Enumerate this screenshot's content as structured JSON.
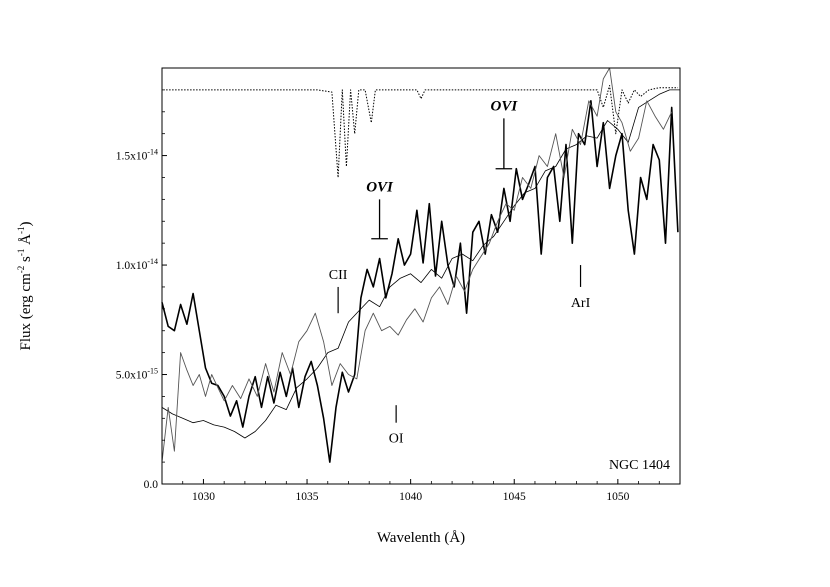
{
  "chart_data": {
    "type": "line",
    "title": "",
    "xlabel": "Wavelenth (Å)",
    "ylabel": "Flux (erg cm-2 s-1 Å-1)",
    "xlim": [
      1028,
      1053
    ],
    "ylim": [
      0,
      1.9e-14
    ],
    "x_ticks": [
      1030,
      1035,
      1040,
      1045,
      1050
    ],
    "x_tick_labels": [
      "1030",
      "1035",
      "1040",
      "1045",
      "1050"
    ],
    "y_ticks": [
      0,
      5e-15,
      1e-14,
      1.5e-14
    ],
    "y_tick_labels": [
      "0.0",
      "5.0x10-15",
      "1.0x10-14",
      "1.5x10-14"
    ],
    "grid": false,
    "legend": "none",
    "annotation": "NGC 1404",
    "series": [
      {
        "style": "thick-black",
        "x": [
          1028.0,
          1028.3,
          1028.6,
          1028.9,
          1029.2,
          1029.5,
          1029.8,
          1030.1,
          1030.4,
          1030.7,
          1031.0,
          1031.3,
          1031.6,
          1031.9,
          1032.2,
          1032.5,
          1032.8,
          1033.1,
          1033.4,
          1033.7,
          1034.0,
          1034.3,
          1034.6,
          1034.9,
          1035.2,
          1035.5,
          1035.8,
          1036.1,
          1036.4,
          1036.7,
          1037.0,
          1037.3,
          1037.6,
          1037.9,
          1038.2,
          1038.5,
          1038.8,
          1039.1,
          1039.4,
          1039.7,
          1040.0,
          1040.3,
          1040.6,
          1040.9,
          1041.2,
          1041.5,
          1041.8,
          1042.1,
          1042.4,
          1042.7,
          1043.0,
          1043.3,
          1043.6,
          1043.9,
          1044.2,
          1044.5,
          1044.8,
          1045.1,
          1045.4,
          1045.7,
          1046.0,
          1046.3,
          1046.6,
          1046.9,
          1047.2,
          1047.5,
          1047.8,
          1048.1,
          1048.4,
          1048.7,
          1049.0,
          1049.3,
          1049.6,
          1049.9,
          1050.2,
          1050.5,
          1050.8,
          1051.1,
          1051.4,
          1051.7,
          1052.0,
          1052.3,
          1052.6,
          1052.9
        ],
        "y": [
          8.3e-15,
          7.2e-15,
          7e-15,
          8.2e-15,
          7.3e-15,
          8.7e-15,
          7e-15,
          5.3e-15,
          4.6e-15,
          4.5e-15,
          4e-15,
          3.1e-15,
          3.8e-15,
          2.6e-15,
          4e-15,
          4.9e-15,
          3.5e-15,
          4.9e-15,
          3.7e-15,
          5.1e-15,
          4e-15,
          5.3e-15,
          3.5e-15,
          4.9e-15,
          5.6e-15,
          4.5e-15,
          3e-15,
          1e-15,
          3.5e-15,
          5.1e-15,
          4.2e-15,
          5e-15,
          8.5e-15,
          9.8e-15,
          9e-15,
          1.03e-14,
          8.5e-15,
          9.6e-15,
          1.12e-14,
          1e-14,
          1.05e-14,
          1.25e-14,
          1.01e-14,
          1.28e-14,
          9.5e-15,
          1.2e-14,
          1e-14,
          9e-15,
          1.1e-14,
          7.8e-15,
          1.15e-14,
          1.2e-14,
          1.05e-14,
          1.23e-14,
          1.15e-14,
          1.35e-14,
          1.2e-14,
          1.44e-14,
          1.3e-14,
          1.37e-14,
          1.45e-14,
          1.05e-14,
          1.4e-14,
          1.45e-14,
          1.2e-14,
          1.55e-14,
          1.1e-14,
          1.6e-14,
          1.55e-14,
          1.75e-14,
          1.45e-14,
          1.65e-14,
          1.35e-14,
          1.5e-14,
          1.6e-14,
          1.25e-14,
          1.05e-14,
          1.4e-14,
          1.3e-14,
          1.55e-14,
          1.48e-14,
          1.1e-14,
          1.72e-14,
          1.15e-14
        ]
      },
      {
        "style": "thin-black",
        "x": [
          1028.0,
          1028.5,
          1029.0,
          1029.5,
          1030.0,
          1030.5,
          1031.0,
          1031.5,
          1032.0,
          1032.5,
          1033.0,
          1033.5,
          1034.0,
          1034.5,
          1035.0,
          1035.5,
          1036.0,
          1036.5,
          1037.0,
          1037.5,
          1038.0,
          1038.5,
          1039.0,
          1039.5,
          1040.0,
          1040.5,
          1041.0,
          1041.5,
          1042.0,
          1042.5,
          1043.0,
          1043.5,
          1044.0,
          1044.5,
          1045.0,
          1045.5,
          1046.0,
          1046.5,
          1047.0,
          1047.5,
          1048.0,
          1048.5,
          1049.0,
          1049.5,
          1050.0,
          1050.5,
          1051.0,
          1051.5,
          1052.0,
          1052.5,
          1053.0
        ],
        "y": [
          3.5e-15,
          3.2e-15,
          3e-15,
          2.8e-15,
          2.9e-15,
          2.7e-15,
          2.6e-15,
          2.4e-15,
          2.1e-15,
          2.4e-15,
          2.9e-15,
          3.6e-15,
          3.4e-15,
          4.4e-15,
          4.8e-15,
          5.3e-15,
          6e-15,
          6.2e-15,
          7.4e-15,
          7.9e-15,
          8.4e-15,
          8.1e-15,
          9e-15,
          9.4e-15,
          9.6e-15,
          9.2e-15,
          9.8e-15,
          9.4e-15,
          1.03e-14,
          1.05e-14,
          1.02e-14,
          1.09e-14,
          1.13e-14,
          1.2e-14,
          1.27e-14,
          1.33e-14,
          1.35e-14,
          1.43e-14,
          1.45e-14,
          1.53e-14,
          1.55e-14,
          1.59e-14,
          1.58e-14,
          1.66e-14,
          1.62e-14,
          1.56e-14,
          1.72e-14,
          1.75e-14,
          1.78e-14,
          1.8e-14,
          1.8e-14
        ]
      },
      {
        "style": "gray",
        "x": [
          1028.0,
          1028.3,
          1028.6,
          1028.9,
          1029.2,
          1029.5,
          1029.8,
          1030.1,
          1030.4,
          1030.7,
          1031.0,
          1031.4,
          1031.8,
          1032.2,
          1032.6,
          1033.0,
          1033.4,
          1033.8,
          1034.2,
          1034.6,
          1035.0,
          1035.4,
          1035.8,
          1036.2,
          1036.6,
          1037.0,
          1037.4,
          1037.8,
          1038.2,
          1038.6,
          1039.0,
          1039.4,
          1039.8,
          1040.2,
          1040.6,
          1041.0,
          1041.4,
          1041.8,
          1042.2,
          1042.6,
          1043.0,
          1043.4,
          1043.8,
          1044.2,
          1044.6,
          1045.0,
          1045.4,
          1045.8,
          1046.2,
          1046.6,
          1047.0,
          1047.4,
          1047.8,
          1048.2,
          1048.6,
          1049.0,
          1049.3,
          1049.6,
          1049.9,
          1050.2,
          1050.6,
          1051.0,
          1051.4,
          1051.8,
          1052.2,
          1052.6
        ],
        "y": [
          1e-15,
          3.5e-15,
          1.5e-15,
          6e-15,
          5.2e-15,
          4.5e-15,
          5e-15,
          4e-15,
          5e-15,
          4.4e-15,
          3.8e-15,
          4.5e-15,
          3.9e-15,
          4.8e-15,
          4e-15,
          5.5e-15,
          4.2e-15,
          6e-15,
          5e-15,
          6.5e-15,
          7e-15,
          7.8e-15,
          6.5e-15,
          4.5e-15,
          5.5e-15,
          5e-15,
          4.8e-15,
          7e-15,
          7.8e-15,
          7e-15,
          7.2e-15,
          6.8e-15,
          7.5e-15,
          8e-15,
          7.4e-15,
          8.5e-15,
          9e-15,
          8.2e-15,
          9.5e-15,
          8.8e-15,
          9.8e-15,
          1.04e-14,
          1.1e-14,
          1.2e-14,
          1.28e-14,
          1.25e-14,
          1.4e-14,
          1.35e-14,
          1.5e-14,
          1.45e-14,
          1.6e-14,
          1.4e-14,
          1.62e-14,
          1.55e-14,
          1.75e-14,
          1.68e-14,
          1.85e-14,
          1.9e-14,
          1.7e-14,
          1.65e-14,
          1.52e-14,
          1.58e-14,
          1.75e-14,
          1.68e-14,
          1.62e-14,
          1.7e-14
        ]
      },
      {
        "style": "dotted-top",
        "x": [
          1028.2,
          1030.0,
          1032.0,
          1034.0,
          1035.5,
          1036.2,
          1036.5,
          1036.7,
          1036.9,
          1037.1,
          1037.3,
          1037.5,
          1037.8,
          1038.1,
          1038.3,
          1038.5,
          1038.8,
          1039.5,
          1040.3,
          1040.5,
          1040.7,
          1042.0,
          1044.0,
          1046.0,
          1048.0,
          1049.0,
          1049.3,
          1049.6,
          1049.9,
          1050.2,
          1050.5,
          1050.8,
          1051.1,
          1051.5,
          1052.0,
          1052.9
        ],
        "y": [
          1.8e-14,
          1.8e-14,
          1.8e-14,
          1.8e-14,
          1.8e-14,
          1.79e-14,
          1.4e-14,
          1.8e-14,
          1.45e-14,
          1.8e-14,
          1.6e-14,
          1.8e-14,
          1.8e-14,
          1.65e-14,
          1.8e-14,
          1.8e-14,
          1.8e-14,
          1.8e-14,
          1.8e-14,
          1.76e-14,
          1.8e-14,
          1.8e-14,
          1.8e-14,
          1.8e-14,
          1.8e-14,
          1.8e-14,
          1.72e-14,
          1.82e-14,
          1.6e-14,
          1.8e-14,
          1.74e-14,
          1.8e-14,
          1.77e-14,
          1.8e-14,
          1.81e-14,
          1.81e-14
        ]
      }
    ],
    "line_markers": [
      {
        "label": "CII",
        "x": 1036.5,
        "y_from": 7.8e-15,
        "y_to": 9e-15,
        "label_side": "above"
      },
      {
        "label": "OI",
        "x": 1039.3,
        "y_from": 2.8e-15,
        "y_to": 3.6e-15,
        "label_side": "below"
      },
      {
        "label": "ArI",
        "x": 1048.2,
        "y_from": 9e-15,
        "y_to": 1e-14,
        "label_side": "below"
      }
    ],
    "ion_markers": [
      {
        "label": "OVI",
        "x": 1038.5,
        "bar_y": 1.12e-14,
        "stem_to": 1.3e-14,
        "bar_half_width": 0.4
      },
      {
        "label": "OVI",
        "x": 1044.5,
        "bar_y": 1.44e-14,
        "stem_to": 1.67e-14,
        "bar_half_width": 0.4
      }
    ]
  }
}
